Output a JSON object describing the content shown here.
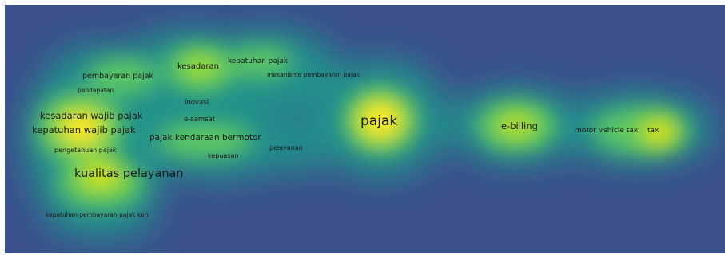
{
  "visualization": {
    "type": "keyword-density-map",
    "colors": {
      "background": "#3b4f8c",
      "ramp": [
        "#3b528b",
        "#21918c",
        "#5ec962",
        "#fde725"
      ]
    },
    "terms": [
      {
        "label": "pajak",
        "density": 1.0
      },
      {
        "label": "e-billing",
        "density": 0.8
      },
      {
        "label": "tax",
        "density": 0.8
      },
      {
        "label": "motor vehicle tax",
        "density": 0.55
      },
      {
        "label": "kualitas pelayanan",
        "density": 0.85
      },
      {
        "label": "kesadaran wajib pajak",
        "density": 0.85
      },
      {
        "label": "kepatuhan wajib pajak",
        "density": 0.85
      },
      {
        "label": "pajak kendaraan bermotor",
        "density": 0.7
      },
      {
        "label": "kesadaran",
        "density": 0.7
      },
      {
        "label": "kepatuhan pajak",
        "density": 0.6
      },
      {
        "label": "pembayaran pajak",
        "density": 0.6
      },
      {
        "label": "mekanisme pembayaran pajak",
        "density": 0.45
      },
      {
        "label": "pendapatan",
        "density": 0.5
      },
      {
        "label": "inovasi",
        "density": 0.5
      },
      {
        "label": "e-samsat",
        "density": 0.5
      },
      {
        "label": "pengetahuan pajak",
        "density": 0.5
      },
      {
        "label": "kepuasan",
        "density": 0.45
      },
      {
        "label": "pelayanan",
        "density": 0.45
      },
      {
        "label": "kepatuhan pembayaran pajak ken",
        "density": 0.4
      }
    ]
  }
}
